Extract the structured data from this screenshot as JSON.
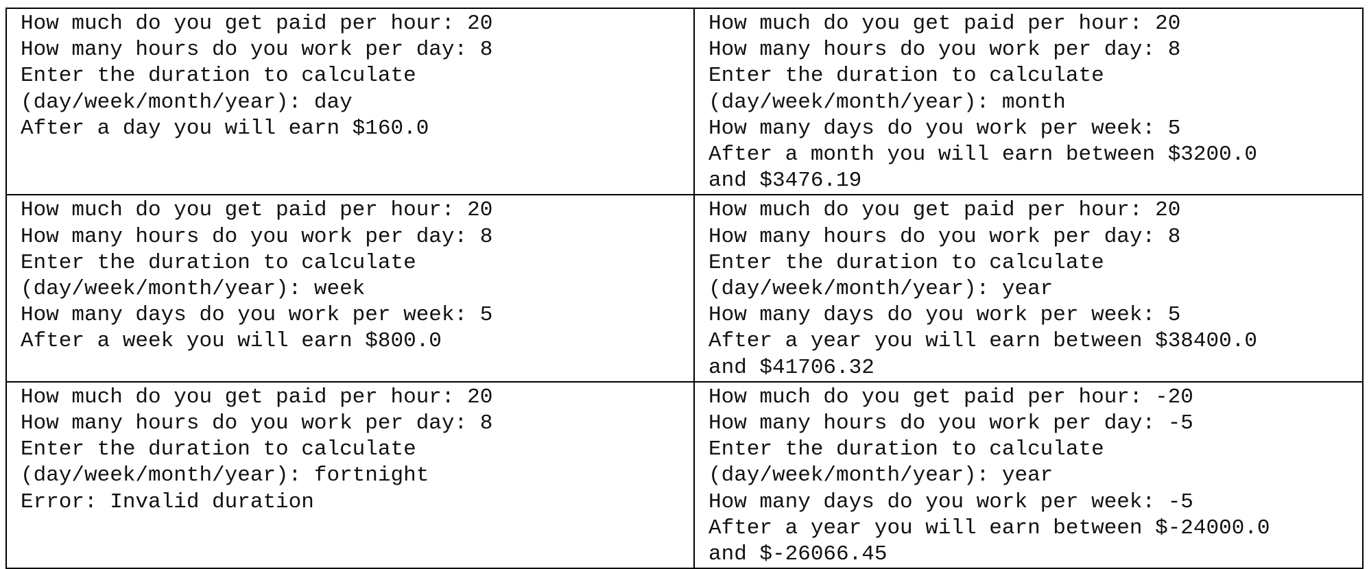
{
  "cells": [
    [
      {
        "lines": [
          "How much do you get paid per hour: 20",
          "How many hours do you work per day: 8",
          "Enter the duration to calculate",
          "(day/week/month/year): day",
          "After a day you will earn $160.0"
        ]
      },
      {
        "lines": [
          "How much do you get paid per hour: 20",
          "How many hours do you work per day: 8",
          "Enter the duration to calculate",
          "(day/week/month/year): month",
          "How many days do you work per week: 5",
          "After a month you will earn between $3200.0",
          "and $3476.19"
        ]
      }
    ],
    [
      {
        "lines": [
          "How much do you get paid per hour: 20",
          "How many hours do you work per day: 8",
          "Enter the duration to calculate",
          "(day/week/month/year): week",
          "How many days do you work per week: 5",
          "After a week you will earn $800.0"
        ]
      },
      {
        "lines": [
          "How much do you get paid per hour: 20",
          "How many hours do you work per day: 8",
          "Enter the duration to calculate",
          "(day/week/month/year): year",
          "How many days do you work per week: 5",
          "After a year you will earn between $38400.0",
          "and $41706.32"
        ]
      }
    ],
    [
      {
        "lines": [
          "How much do you get paid per hour: 20",
          "How many hours do you work per day: 8",
          "Enter the duration to calculate",
          "(day/week/month/year): fortnight",
          "Error: Invalid duration"
        ]
      },
      {
        "lines": [
          "How much do you get paid per hour: -20",
          "How many hours do you work per day: -5",
          "Enter the duration to calculate",
          "(day/week/month/year): year",
          "How many days do you work per week: -5",
          "After a year you will earn between $-24000.0",
          "and $-26066.45"
        ]
      }
    ]
  ]
}
